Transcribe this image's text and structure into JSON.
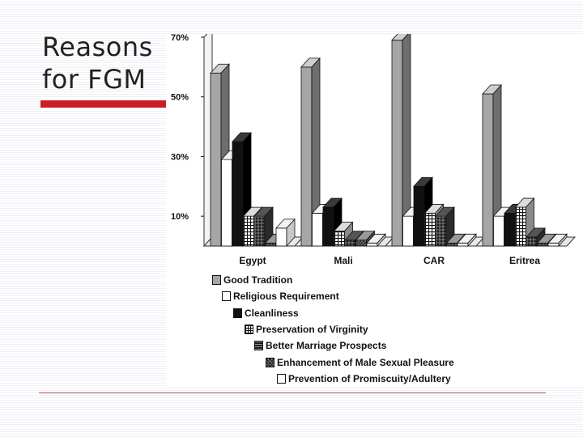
{
  "slide": {
    "title_line1": "Reasons",
    "title_line2": "for FGM",
    "accent_color": "#c81e24"
  },
  "chart_data": {
    "type": "bar",
    "title": "",
    "xlabel": "",
    "ylabel": "",
    "ylim": [
      0,
      70
    ],
    "yticks": [
      10,
      30,
      50,
      70
    ],
    "ytick_labels": [
      "10%",
      "30%",
      "50%",
      "70%"
    ],
    "grid": false,
    "legend_position": "bottom",
    "categories": [
      "Egypt",
      "Mali",
      "CAR",
      "Eritrea"
    ],
    "series": [
      {
        "name": "Good Tradition",
        "values": [
          58,
          60,
          69,
          51
        ],
        "color": "#a8a8a8"
      },
      {
        "name": "Religious Requirement",
        "values": [
          29,
          11,
          10,
          10
        ],
        "color": "#ffffff"
      },
      {
        "name": "Cleanliness",
        "values": [
          35,
          13,
          20,
          11
        ],
        "color": "#111111"
      },
      {
        "name": "Preservation of Virginity",
        "values": [
          10,
          5,
          11,
          13
        ],
        "color": "#ffffff"
      },
      {
        "name": "Better Marriage Prospects",
        "values": [
          10,
          2,
          10,
          3
        ],
        "color": "#222222"
      },
      {
        "name": "Enhancement of Male Sexual Pleasure",
        "values": [
          1,
          2,
          1,
          1
        ],
        "color": "#555555"
      },
      {
        "name": "Prevention of Promiscuity/Adultery",
        "values": [
          6,
          1,
          1,
          1
        ],
        "color": "#ffffff"
      }
    ]
  }
}
